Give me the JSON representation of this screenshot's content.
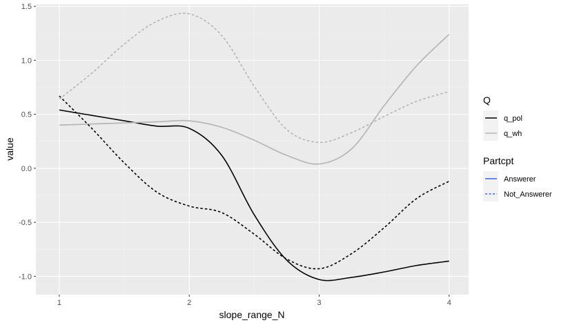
{
  "chart_data": {
    "type": "line",
    "xlabel": "slope_range_N",
    "ylabel": "value",
    "xlim": [
      0.82,
      4.15
    ],
    "ylim": [
      -1.17,
      1.52
    ],
    "x_ticks": [
      1,
      2,
      3,
      4
    ],
    "x_tick_labels": [
      "1",
      "2",
      "3",
      "4"
    ],
    "y_ticks": [
      -1.0,
      -0.5,
      0.0,
      0.5,
      1.0,
      1.5
    ],
    "y_tick_labels": [
      "-1.0",
      "-0.5",
      "0.0",
      "0.5",
      "1.0",
      "1.5"
    ],
    "grid": true,
    "legend_position": "right",
    "x": [
      1,
      1.25,
      1.5,
      1.75,
      2,
      2.25,
      2.5,
      2.75,
      3,
      3.25,
      3.5,
      3.75,
      4
    ],
    "series": [
      {
        "q": "q_pol",
        "partcpt": "Answerer",
        "values": [
          0.54,
          0.49,
          0.44,
          0.39,
          0.37,
          0.12,
          -0.43,
          -0.85,
          -1.03,
          -1.01,
          -0.96,
          -0.9,
          -0.86
        ]
      },
      {
        "q": "q_wh",
        "partcpt": "Answerer",
        "values": [
          0.4,
          0.41,
          0.42,
          0.43,
          0.44,
          0.38,
          0.26,
          0.12,
          0.04,
          0.18,
          0.58,
          0.95,
          1.24
        ]
      },
      {
        "q": "q_pol",
        "partcpt": "Not_Answerer",
        "values": [
          0.67,
          0.37,
          0.05,
          -0.22,
          -0.35,
          -0.41,
          -0.61,
          -0.84,
          -0.93,
          -0.79,
          -0.55,
          -0.28,
          -0.12
        ]
      },
      {
        "q": "q_wh",
        "partcpt": "Not_Answerer",
        "values": [
          0.64,
          0.88,
          1.15,
          1.36,
          1.43,
          1.23,
          0.76,
          0.36,
          0.24,
          0.33,
          0.48,
          0.62,
          0.71
        ]
      }
    ],
    "legend": {
      "groups": [
        {
          "title": "Q",
          "items": [
            {
              "label": "q_pol",
              "color": "#000000",
              "dash": "solid"
            },
            {
              "label": "q_wh",
              "color": "#b3b3b3",
              "dash": "solid"
            }
          ]
        },
        {
          "title": "Partcpt",
          "items": [
            {
              "label": "Answerer",
              "color": "#3366ff",
              "dash": "solid"
            },
            {
              "label": "Not_Answerer",
              "color": "#3366ff",
              "dash": "dotted"
            }
          ]
        }
      ]
    },
    "colors": {
      "q_pol": "#000000",
      "q_wh": "#b3b3b3",
      "panel_background": "#ebebeb",
      "grid_major": "#ffffff",
      "grid_minor": "#f5f5f5"
    }
  }
}
